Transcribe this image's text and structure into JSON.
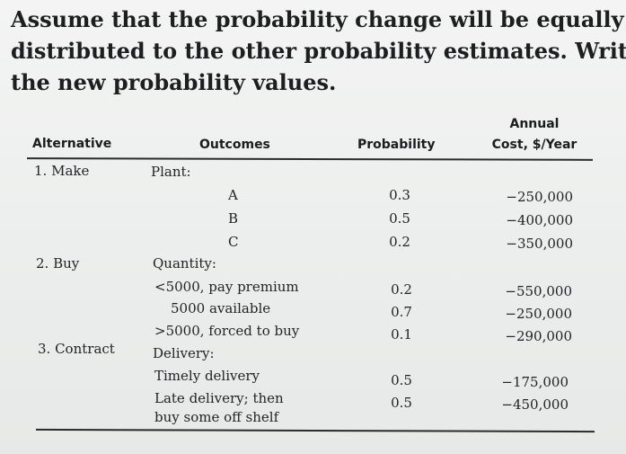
{
  "prompt": {
    "lines": [
      "Assume that the probability change will be equally",
      "distributed to the other probability estimates. Write",
      "the new probability values."
    ]
  },
  "table": {
    "headers": {
      "alternative": "Alternative",
      "outcomes": "Outcomes",
      "probability": "Probability",
      "annual": "Annual",
      "cost": "Cost, $/Year"
    },
    "rows": {
      "make_label": "1. Make",
      "plant_label": "Plant:",
      "outcome_a": "A",
      "outcome_b": "B",
      "outcome_c": "C",
      "prob_a": "0.3",
      "prob_b": "0.5",
      "prob_c": "0.2",
      "cost_a": "−250,000",
      "cost_b": "−400,000",
      "cost_c": "−350,000",
      "buy_label": "2. Buy",
      "quantity_label": "Quantity:",
      "q1": "<5000, pay premium",
      "q2": "5000 available",
      "q3": ">5000, forced to buy",
      "prob_q1": "0.2",
      "prob_q2": "0.7",
      "prob_q3": "0.1",
      "cost_q1": "−550,000",
      "cost_q2": "−250,000",
      "cost_q3": "−290,000",
      "contract_label": "3. Contract",
      "delivery_label": "Delivery:",
      "d1": "Timely delivery",
      "d2_line1": "Late delivery; then",
      "d2_line2": "buy some off shelf",
      "prob_d1": "0.5",
      "prob_d2": "0.5",
      "cost_d1": "−175,000",
      "cost_d2": "−450,000"
    }
  }
}
